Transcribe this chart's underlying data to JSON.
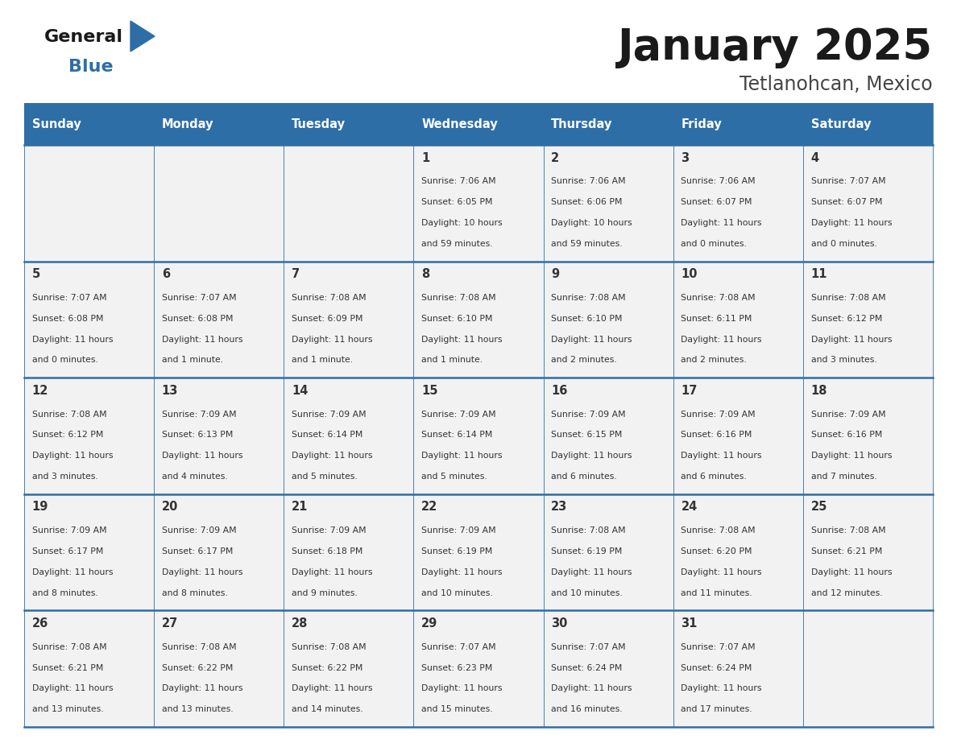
{
  "title": "January 2025",
  "subtitle": "Tetlanohcan, Mexico",
  "days_of_week": [
    "Sunday",
    "Monday",
    "Tuesday",
    "Wednesday",
    "Thursday",
    "Friday",
    "Saturday"
  ],
  "header_bg": "#2E6EA6",
  "header_text": "#FFFFFF",
  "cell_bg": "#F2F2F2",
  "cell_border_color": "#2E6EA6",
  "day_number_color": "#333333",
  "info_text_color": "#333333",
  "title_color": "#1a1a1a",
  "subtitle_color": "#444444",
  "logo_general_color": "#1a1a1a",
  "logo_blue_color": "#2E6EA6",
  "calendar": [
    [
      null,
      null,
      null,
      {
        "day": 1,
        "sunrise": "7:06 AM",
        "sunset": "6:05 PM",
        "daylight": "10 hours",
        "daylight2": "and 59 minutes."
      },
      {
        "day": 2,
        "sunrise": "7:06 AM",
        "sunset": "6:06 PM",
        "daylight": "10 hours",
        "daylight2": "and 59 minutes."
      },
      {
        "day": 3,
        "sunrise": "7:06 AM",
        "sunset": "6:07 PM",
        "daylight": "11 hours",
        "daylight2": "and 0 minutes."
      },
      {
        "day": 4,
        "sunrise": "7:07 AM",
        "sunset": "6:07 PM",
        "daylight": "11 hours",
        "daylight2": "and 0 minutes."
      }
    ],
    [
      {
        "day": 5,
        "sunrise": "7:07 AM",
        "sunset": "6:08 PM",
        "daylight": "11 hours",
        "daylight2": "and 0 minutes."
      },
      {
        "day": 6,
        "sunrise": "7:07 AM",
        "sunset": "6:08 PM",
        "daylight": "11 hours",
        "daylight2": "and 1 minute."
      },
      {
        "day": 7,
        "sunrise": "7:08 AM",
        "sunset": "6:09 PM",
        "daylight": "11 hours",
        "daylight2": "and 1 minute."
      },
      {
        "day": 8,
        "sunrise": "7:08 AM",
        "sunset": "6:10 PM",
        "daylight": "11 hours",
        "daylight2": "and 1 minute."
      },
      {
        "day": 9,
        "sunrise": "7:08 AM",
        "sunset": "6:10 PM",
        "daylight": "11 hours",
        "daylight2": "and 2 minutes."
      },
      {
        "day": 10,
        "sunrise": "7:08 AM",
        "sunset": "6:11 PM",
        "daylight": "11 hours",
        "daylight2": "and 2 minutes."
      },
      {
        "day": 11,
        "sunrise": "7:08 AM",
        "sunset": "6:12 PM",
        "daylight": "11 hours",
        "daylight2": "and 3 minutes."
      }
    ],
    [
      {
        "day": 12,
        "sunrise": "7:08 AM",
        "sunset": "6:12 PM",
        "daylight": "11 hours",
        "daylight2": "and 3 minutes."
      },
      {
        "day": 13,
        "sunrise": "7:09 AM",
        "sunset": "6:13 PM",
        "daylight": "11 hours",
        "daylight2": "and 4 minutes."
      },
      {
        "day": 14,
        "sunrise": "7:09 AM",
        "sunset": "6:14 PM",
        "daylight": "11 hours",
        "daylight2": "and 5 minutes."
      },
      {
        "day": 15,
        "sunrise": "7:09 AM",
        "sunset": "6:14 PM",
        "daylight": "11 hours",
        "daylight2": "and 5 minutes."
      },
      {
        "day": 16,
        "sunrise": "7:09 AM",
        "sunset": "6:15 PM",
        "daylight": "11 hours",
        "daylight2": "and 6 minutes."
      },
      {
        "day": 17,
        "sunrise": "7:09 AM",
        "sunset": "6:16 PM",
        "daylight": "11 hours",
        "daylight2": "and 6 minutes."
      },
      {
        "day": 18,
        "sunrise": "7:09 AM",
        "sunset": "6:16 PM",
        "daylight": "11 hours",
        "daylight2": "and 7 minutes."
      }
    ],
    [
      {
        "day": 19,
        "sunrise": "7:09 AM",
        "sunset": "6:17 PM",
        "daylight": "11 hours",
        "daylight2": "and 8 minutes."
      },
      {
        "day": 20,
        "sunrise": "7:09 AM",
        "sunset": "6:17 PM",
        "daylight": "11 hours",
        "daylight2": "and 8 minutes."
      },
      {
        "day": 21,
        "sunrise": "7:09 AM",
        "sunset": "6:18 PM",
        "daylight": "11 hours",
        "daylight2": "and 9 minutes."
      },
      {
        "day": 22,
        "sunrise": "7:09 AM",
        "sunset": "6:19 PM",
        "daylight": "11 hours",
        "daylight2": "and 10 minutes."
      },
      {
        "day": 23,
        "sunrise": "7:08 AM",
        "sunset": "6:19 PM",
        "daylight": "11 hours",
        "daylight2": "and 10 minutes."
      },
      {
        "day": 24,
        "sunrise": "7:08 AM",
        "sunset": "6:20 PM",
        "daylight": "11 hours",
        "daylight2": "and 11 minutes."
      },
      {
        "day": 25,
        "sunrise": "7:08 AM",
        "sunset": "6:21 PM",
        "daylight": "11 hours",
        "daylight2": "and 12 minutes."
      }
    ],
    [
      {
        "day": 26,
        "sunrise": "7:08 AM",
        "sunset": "6:21 PM",
        "daylight": "11 hours",
        "daylight2": "and 13 minutes."
      },
      {
        "day": 27,
        "sunrise": "7:08 AM",
        "sunset": "6:22 PM",
        "daylight": "11 hours",
        "daylight2": "and 13 minutes."
      },
      {
        "day": 28,
        "sunrise": "7:08 AM",
        "sunset": "6:22 PM",
        "daylight": "11 hours",
        "daylight2": "and 14 minutes."
      },
      {
        "day": 29,
        "sunrise": "7:07 AM",
        "sunset": "6:23 PM",
        "daylight": "11 hours",
        "daylight2": "and 15 minutes."
      },
      {
        "day": 30,
        "sunrise": "7:07 AM",
        "sunset": "6:24 PM",
        "daylight": "11 hours",
        "daylight2": "and 16 minutes."
      },
      {
        "day": 31,
        "sunrise": "7:07 AM",
        "sunset": "6:24 PM",
        "daylight": "11 hours",
        "daylight2": "and 17 minutes."
      },
      null
    ]
  ]
}
